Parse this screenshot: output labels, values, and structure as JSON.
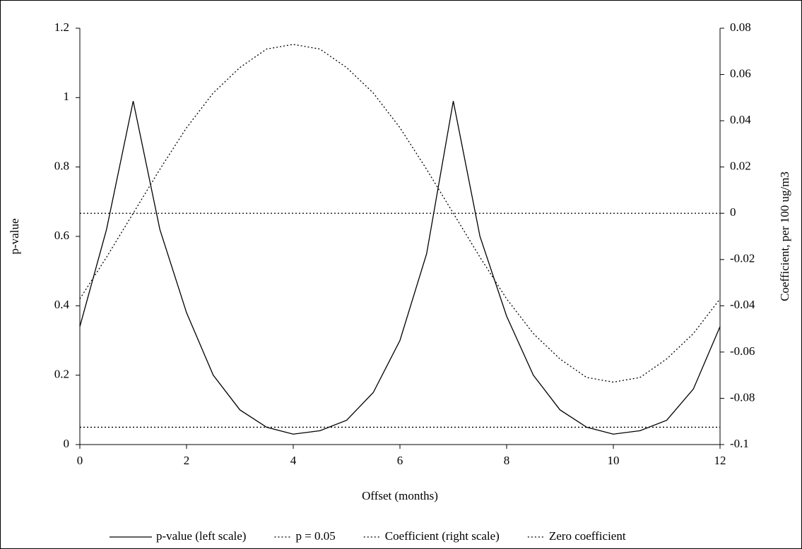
{
  "chart_data": {
    "type": "line",
    "x_label": "Offset (months)",
    "y_label": "p-value",
    "y2_label": "Coefficient, per 100 ug/m3",
    "x": [
      0,
      0.5,
      1,
      1.5,
      2,
      2.5,
      3,
      3.5,
      4,
      4.5,
      5,
      5.5,
      6,
      6.5,
      7,
      7.5,
      8,
      8.5,
      9,
      9.5,
      10,
      10.5,
      11,
      11.5,
      12
    ],
    "xlim": [
      0,
      12
    ],
    "xticks": [
      0,
      2,
      4,
      6,
      8,
      10,
      12
    ],
    "ylim": [
      0,
      1.2
    ],
    "yticks": [
      0,
      0.2,
      0.4,
      0.6,
      0.8,
      1,
      1.2
    ],
    "y2lim": [
      -0.1,
      0.08
    ],
    "y2ticks": [
      -0.1,
      -0.08,
      -0.06,
      -0.04,
      -0.02,
      0,
      0.02,
      0.04,
      0.06,
      0.08
    ],
    "legend": "bottom",
    "series": [
      {
        "name": "p-value (left scale)",
        "color": "#000000",
        "dash": "solid",
        "values": [
          0.34,
          0.62,
          0.99,
          0.62,
          0.38,
          0.2,
          0.1,
          0.05,
          0.03,
          0.04,
          0.07,
          0.15,
          0.3,
          0.55,
          0.99,
          0.6,
          0.37,
          0.2,
          0.1,
          0.05,
          0.03,
          0.04,
          0.07,
          0.16,
          0.34
        ]
      },
      {
        "name": "p = 0.05",
        "color": "#000000",
        "dash": "dotted",
        "values": [
          0.05,
          0.05,
          0.05,
          0.05,
          0.05,
          0.05,
          0.05,
          0.05,
          0.05,
          0.05,
          0.05,
          0.05,
          0.05,
          0.05,
          0.05,
          0.05,
          0.05,
          0.05,
          0.05,
          0.05,
          0.05,
          0.05,
          0.05,
          0.05,
          0.05
        ]
      },
      {
        "name": "Coefficient (right scale)",
        "color": "#000000",
        "dash": "dotted",
        "axis": "y2",
        "values": [
          -0.037,
          -0.019,
          0,
          0.019,
          0.037,
          0.052,
          0.063,
          0.071,
          0.073,
          0.071,
          0.063,
          0.052,
          0.037,
          0.019,
          0,
          -0.019,
          -0.037,
          -0.052,
          -0.063,
          -0.071,
          -0.073,
          -0.071,
          -0.063,
          -0.052,
          -0.037
        ]
      },
      {
        "name": "Zero coefficient",
        "color": "#000000",
        "dash": "dotted",
        "axis": "y2",
        "values": [
          0,
          0,
          0,
          0,
          0,
          0,
          0,
          0,
          0,
          0,
          0,
          0,
          0,
          0,
          0,
          0,
          0,
          0,
          0,
          0,
          0,
          0,
          0,
          0,
          0
        ]
      }
    ]
  }
}
